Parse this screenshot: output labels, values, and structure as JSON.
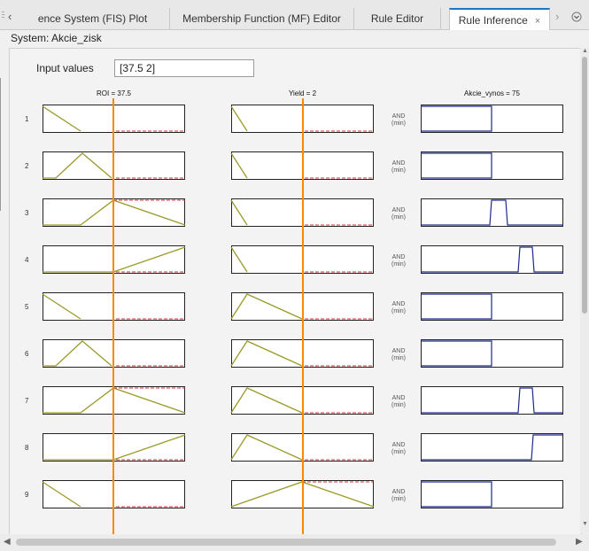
{
  "tabs": [
    {
      "label": "ence System (FIS) Plot",
      "active": false
    },
    {
      "label": "Membership Function (MF) Editor",
      "active": false
    },
    {
      "label": "Rule Editor",
      "active": false
    },
    {
      "label": "Rule Inference",
      "active": true
    }
  ],
  "tab_close_glyph": "×",
  "system_label": "System: Akcie_zisk",
  "input": {
    "label": "Input values",
    "value": "[37.5 2]"
  },
  "columns": {
    "roi_title": "ROI = 37.5",
    "yield_title": "Yield = 2",
    "output_title": "Akcie_vynos = 75"
  },
  "operator": {
    "line1": "AND",
    "line2": "(min)"
  },
  "rules": [
    "1",
    "2",
    "3",
    "4",
    "5",
    "6",
    "7",
    "8",
    "9"
  ],
  "icons": {
    "tab_left": "chevron-left-icon",
    "tab_right": "chevron-right-icon",
    "tab_menu": "chevron-down-circle-icon"
  },
  "colors": {
    "mf_line": "#9a9a2a",
    "output_line": "#1c2a8a",
    "cursor": "#f58a07",
    "fired": "#d03030",
    "active_tab": "#1b75c6"
  }
}
